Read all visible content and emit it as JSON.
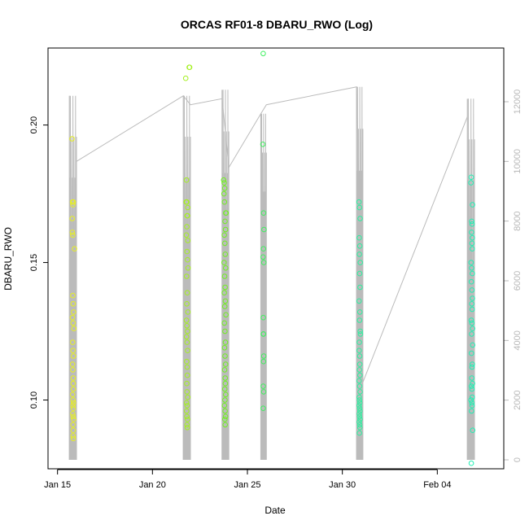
{
  "chart_data": {
    "type": "scatter",
    "title": "ORCAS RF01-8 DBARU_RWO (Log)",
    "xlabel": "Date",
    "ylabel": "DBARU_RWO",
    "x_axis": {
      "type": "date",
      "range": [
        "2016-01-14T12:00",
        "2016-02-07T12:00"
      ],
      "ticks": [
        {
          "date": "2016-01-15",
          "label": "Jan 15"
        },
        {
          "date": "2016-01-20",
          "label": "Jan 20"
        },
        {
          "date": "2016-01-25",
          "label": "Jan 25"
        },
        {
          "date": "2016-01-30",
          "label": "Jan 30"
        },
        {
          "date": "2016-02-04",
          "label": "Feb 04"
        }
      ]
    },
    "y_axis": {
      "range": [
        0.075,
        0.228
      ],
      "ticks": [
        {
          "value": 0.1,
          "label": "0.10"
        },
        {
          "value": 0.15,
          "label": "0.15"
        },
        {
          "value": 0.2,
          "label": "0.20"
        }
      ]
    },
    "y2_axis": {
      "color": "#b8b8b8",
      "range": [
        -300,
        13800
      ],
      "ticks": [
        {
          "value": 0,
          "label": "0"
        },
        {
          "value": 2000,
          "label": "2000"
        },
        {
          "value": 4000,
          "label": "4000"
        },
        {
          "value": 6000,
          "label": "6000"
        },
        {
          "value": 8000,
          "label": "8000"
        },
        {
          "value": 10000,
          "label": "10000"
        },
        {
          "value": 12000,
          "label": "12000"
        }
      ]
    },
    "grid": false,
    "legend": "none",
    "line_color": "#bbbbbb",
    "flights": [
      {
        "date": "2016-01-15",
        "color": "#e8f020",
        "start": "2016-01-15T15:00",
        "end": "2016-01-16T00:00",
        "max_alt": 12200,
        "points": [
          [
            "2016-01-15T18:20",
            0.195
          ],
          [
            "2016-01-15T19:00",
            0.172
          ],
          [
            "2016-01-15T19:30",
            0.171
          ],
          [
            "2016-01-15T20:00",
            0.172
          ],
          [
            "2016-01-15T18:30",
            0.166
          ],
          [
            "2016-01-15T18:45",
            0.161
          ],
          [
            "2016-01-15T19:15",
            0.16
          ],
          [
            "2016-01-15T21:30",
            0.155
          ],
          [
            "2016-01-15T19:20",
            0.138
          ],
          [
            "2016-01-15T19:50",
            0.135
          ],
          [
            "2016-01-15T20:20",
            0.132
          ],
          [
            "2016-01-15T18:50",
            0.13
          ],
          [
            "2016-01-15T19:40",
            0.128
          ],
          [
            "2016-01-15T20:40",
            0.126
          ],
          [
            "2016-01-15T19:10",
            0.121
          ],
          [
            "2016-01-15T19:35",
            0.118
          ],
          [
            "2016-01-15T20:10",
            0.116
          ],
          [
            "2016-01-15T19:05",
            0.113
          ],
          [
            "2016-01-15T19:25",
            0.111
          ],
          [
            "2016-01-15T19:55",
            0.108
          ],
          [
            "2016-01-15T19:45",
            0.106
          ],
          [
            "2016-01-15T20:05",
            0.104
          ],
          [
            "2016-01-15T19:12",
            0.102
          ],
          [
            "2016-01-15T19:38",
            0.1
          ],
          [
            "2016-01-15T20:15",
            0.099
          ],
          [
            "2016-01-15T19:28",
            0.098
          ],
          [
            "2016-01-15T19:58",
            0.097
          ],
          [
            "2016-01-15T19:18",
            0.095
          ],
          [
            "2016-01-15T19:48",
            0.094
          ],
          [
            "2016-01-15T20:25",
            0.093
          ],
          [
            "2016-01-15T19:32",
            0.091
          ],
          [
            "2016-01-15T19:52",
            0.089
          ],
          [
            "2016-01-15T19:42",
            0.087
          ],
          [
            "2016-01-15T20:02",
            0.086
          ]
        ]
      },
      {
        "date": "2016-01-21",
        "color": "#a4f020",
        "start": "2016-01-21T15:00",
        "end": "2016-01-22T00:00",
        "max_alt": 12200,
        "points": [
          [
            "2016-01-21T23:00",
            0.221
          ],
          [
            "2016-01-21T22:30",
            0.221
          ],
          [
            "2016-01-21T18:00",
            0.217
          ],
          [
            "2016-01-21T19:00",
            0.18
          ],
          [
            "2016-01-21T18:40",
            0.172
          ],
          [
            "2016-01-21T19:20",
            0.172
          ],
          [
            "2016-01-21T20:30",
            0.17
          ],
          [
            "2016-01-21T19:50",
            0.167
          ],
          [
            "2016-01-21T20:10",
            0.167
          ],
          [
            "2016-01-21T19:30",
            0.163
          ],
          [
            "2016-01-21T18:50",
            0.16
          ],
          [
            "2016-01-21T20:40",
            0.158
          ],
          [
            "2016-01-21T19:40",
            0.154
          ],
          [
            "2016-01-21T20:20",
            0.151
          ],
          [
            "2016-01-21T21:00",
            0.148
          ],
          [
            "2016-01-21T19:10",
            0.145
          ],
          [
            "2016-01-21T20:00",
            0.139
          ],
          [
            "2016-01-21T19:25",
            0.135
          ],
          [
            "2016-01-21T20:50",
            0.132
          ],
          [
            "2016-01-21T18:55",
            0.129
          ],
          [
            "2016-01-21T19:35",
            0.127
          ],
          [
            "2016-01-21T20:15",
            0.125
          ],
          [
            "2016-01-21T19:05",
            0.123
          ],
          [
            "2016-01-21T19:45",
            0.121
          ],
          [
            "2016-01-21T20:25",
            0.118
          ],
          [
            "2016-01-21T19:15",
            0.114
          ],
          [
            "2016-01-21T19:55",
            0.112
          ],
          [
            "2016-01-21T20:05",
            0.109
          ],
          [
            "2016-01-21T19:22",
            0.106
          ],
          [
            "2016-01-21T19:38",
            0.103
          ],
          [
            "2016-01-21T20:35",
            0.101
          ],
          [
            "2016-01-21T19:02",
            0.099
          ],
          [
            "2016-01-21T19:48",
            0.098
          ],
          [
            "2016-01-21T19:12",
            0.096
          ],
          [
            "2016-01-21T19:28",
            0.094
          ],
          [
            "2016-01-21T20:18",
            0.093
          ],
          [
            "2016-01-21T19:42",
            0.091
          ],
          [
            "2016-01-21T19:58",
            0.09
          ]
        ]
      },
      {
        "date": "2016-01-23",
        "color": "#70f020",
        "start": "2016-01-23T16:00",
        "end": "2016-01-24T00:30",
        "max_alt": 12400,
        "points": [
          [
            "2016-01-23T18:00",
            0.18
          ],
          [
            "2016-01-23T18:40",
            0.179
          ],
          [
            "2016-01-23T19:20",
            0.177
          ],
          [
            "2016-01-23T18:20",
            0.175
          ],
          [
            "2016-01-23T19:00",
            0.172
          ],
          [
            "2016-01-23T20:40",
            0.168
          ],
          [
            "2016-01-23T21:00",
            0.168
          ],
          [
            "2016-01-23T19:40",
            0.165
          ],
          [
            "2016-01-23T20:20",
            0.162
          ],
          [
            "2016-01-23T18:50",
            0.16
          ],
          [
            "2016-01-23T19:30",
            0.157
          ],
          [
            "2016-01-23T20:00",
            0.153
          ],
          [
            "2016-01-23T18:30",
            0.15
          ],
          [
            "2016-01-23T20:30",
            0.148
          ],
          [
            "2016-01-23T19:10",
            0.145
          ],
          [
            "2016-01-23T19:50",
            0.141
          ],
          [
            "2016-01-23T18:45",
            0.139
          ],
          [
            "2016-01-23T20:10",
            0.136
          ],
          [
            "2016-01-23T19:25",
            0.134
          ],
          [
            "2016-01-23T20:50",
            0.131
          ],
          [
            "2016-01-23T18:55",
            0.128
          ],
          [
            "2016-01-23T19:35",
            0.125
          ],
          [
            "2016-01-23T20:15",
            0.121
          ],
          [
            "2016-01-23T19:05",
            0.119
          ],
          [
            "2016-01-23T19:45",
            0.116
          ],
          [
            "2016-01-23T20:25",
            0.113
          ],
          [
            "2016-01-23T19:15",
            0.111
          ],
          [
            "2016-01-23T19:55",
            0.108
          ],
          [
            "2016-01-23T20:05",
            0.106
          ],
          [
            "2016-01-23T19:22",
            0.104
          ],
          [
            "2016-01-23T20:35",
            0.102
          ],
          [
            "2016-01-23T19:38",
            0.1
          ],
          [
            "2016-01-23T19:02",
            0.098
          ],
          [
            "2016-01-23T19:48",
            0.096
          ],
          [
            "2016-01-23T20:18",
            0.094
          ],
          [
            "2016-01-23T19:28",
            0.093
          ],
          [
            "2016-01-23T19:58",
            0.091
          ]
        ]
      },
      {
        "date": "2016-01-25",
        "color": "#40f060",
        "start": "2016-01-25T17:00",
        "end": "2016-01-26T00:00",
        "max_alt": 11600,
        "points": [
          [
            "2016-01-25T20:00",
            0.226
          ],
          [
            "2016-01-25T19:30",
            0.193
          ],
          [
            "2016-01-25T20:30",
            0.168
          ],
          [
            "2016-01-25T21:00",
            0.162
          ],
          [
            "2016-01-25T20:15",
            0.155
          ],
          [
            "2016-01-25T19:45",
            0.152
          ],
          [
            "2016-01-25T20:45",
            0.15
          ],
          [
            "2016-01-25T20:05",
            0.13
          ],
          [
            "2016-01-25T20:25",
            0.124
          ],
          [
            "2016-01-25T20:10",
            0.124
          ],
          [
            "2016-01-25T20:40",
            0.116
          ],
          [
            "2016-01-25T20:20",
            0.114
          ],
          [
            "2016-01-25T19:55",
            0.105
          ],
          [
            "2016-01-25T20:35",
            0.103
          ],
          [
            "2016-01-25T20:00",
            0.097
          ]
        ]
      },
      {
        "date": "2016-01-30",
        "color": "#2cf0a0",
        "start": "2016-01-30T18:00",
        "end": "2016-01-31T02:00",
        "max_alt": 12500,
        "points": [
          [
            "2016-01-30T21:00",
            0.172
          ],
          [
            "2016-01-30T21:40",
            0.17
          ],
          [
            "2016-01-30T22:30",
            0.166
          ],
          [
            "2016-01-30T21:20",
            0.159
          ],
          [
            "2016-01-30T22:00",
            0.156
          ],
          [
            "2016-01-30T21:30",
            0.153
          ],
          [
            "2016-01-30T22:40",
            0.15
          ],
          [
            "2016-01-30T21:50",
            0.146
          ],
          [
            "2016-01-30T22:20",
            0.141
          ],
          [
            "2016-01-30T21:10",
            0.136
          ],
          [
            "2016-01-30T22:10",
            0.132
          ],
          [
            "2016-01-30T21:45",
            0.129
          ],
          [
            "2016-01-30T22:35",
            0.125
          ],
          [
            "2016-01-30T22:50",
            0.124
          ],
          [
            "2016-01-30T21:25",
            0.121
          ],
          [
            "2016-01-30T21:15",
            0.118
          ],
          [
            "2016-01-30T21:55",
            0.116
          ],
          [
            "2016-01-30T22:05",
            0.113
          ],
          [
            "2016-01-30T21:35",
            0.111
          ],
          [
            "2016-01-30T22:15",
            0.109
          ],
          [
            "2016-01-30T21:05",
            0.107
          ],
          [
            "2016-01-30T21:48",
            0.105
          ],
          [
            "2016-01-30T22:25",
            0.103
          ],
          [
            "2016-01-30T21:22",
            0.101
          ],
          [
            "2016-01-30T21:38",
            0.1
          ],
          [
            "2016-01-30T22:02",
            0.099
          ],
          [
            "2016-01-30T21:12",
            0.098
          ],
          [
            "2016-01-30T21:52",
            0.097
          ],
          [
            "2016-01-30T22:12",
            0.096
          ],
          [
            "2016-01-30T21:28",
            0.095
          ],
          [
            "2016-01-30T21:42",
            0.094
          ],
          [
            "2016-01-30T22:22",
            0.093
          ],
          [
            "2016-01-30T21:18",
            0.092
          ],
          [
            "2016-01-30T21:58",
            0.091
          ],
          [
            "2016-01-30T22:08",
            0.09
          ],
          [
            "2016-01-30T21:32",
            0.088
          ]
        ]
      },
      {
        "date": "2016-02-05",
        "color": "#20f0b4",
        "start": "2016-02-05T14:00",
        "end": "2016-02-05T23:00",
        "max_alt": 12100,
        "points": [
          [
            "2016-02-05T19:00",
            0.181
          ],
          [
            "2016-02-05T18:30",
            0.179
          ],
          [
            "2016-02-05T20:30",
            0.171
          ],
          [
            "2016-02-05T19:30",
            0.165
          ],
          [
            "2016-02-05T20:00",
            0.164
          ],
          [
            "2016-02-05T19:15",
            0.161
          ],
          [
            "2016-02-05T20:15",
            0.159
          ],
          [
            "2016-02-05T19:45",
            0.157
          ],
          [
            "2016-02-05T20:10",
            0.155
          ],
          [
            "2016-02-05T18:45",
            0.15
          ],
          [
            "2016-02-05T19:20",
            0.148
          ],
          [
            "2016-02-05T20:20",
            0.146
          ],
          [
            "2016-02-05T19:05",
            0.143
          ],
          [
            "2016-02-05T19:50",
            0.14
          ],
          [
            "2016-02-05T20:25",
            0.137
          ],
          [
            "2016-02-05T19:35",
            0.135
          ],
          [
            "2016-02-05T20:05",
            0.133
          ],
          [
            "2016-02-05T18:55",
            0.129
          ],
          [
            "2016-02-05T19:40",
            0.128
          ],
          [
            "2016-02-05T20:35",
            0.126
          ],
          [
            "2016-02-05T19:25",
            0.124
          ],
          [
            "2016-02-05T20:40",
            0.12
          ],
          [
            "2016-02-05T19:10",
            0.117
          ],
          [
            "2016-02-05T20:18",
            0.113
          ],
          [
            "2016-02-05T19:55",
            0.112
          ],
          [
            "2016-02-05T19:32",
            0.108
          ],
          [
            "2016-02-05T20:28",
            0.106
          ],
          [
            "2016-02-05T19:08",
            0.105
          ],
          [
            "2016-02-05T19:48",
            0.104
          ],
          [
            "2016-02-05T20:12",
            0.101
          ],
          [
            "2016-02-05T18:40",
            0.1
          ],
          [
            "2016-02-05T19:38",
            0.099
          ],
          [
            "2016-02-05T20:02",
            0.098
          ],
          [
            "2016-02-05T19:18",
            0.096
          ],
          [
            "2016-02-05T20:45",
            0.089
          ],
          [
            "2016-02-05T19:00",
            0.077
          ]
        ]
      }
    ],
    "ferry_line": [
      [
        "2016-01-16T00:00",
        10000
      ],
      [
        "2016-01-21T15:00",
        12200
      ],
      [
        "2016-01-22T00:00",
        11900
      ],
      [
        "2016-01-23T16:00",
        12100
      ],
      [
        "2016-01-24T00:30",
        9800
      ],
      [
        "2016-01-25T17:00",
        11600
      ],
      [
        "2016-01-26T00:00",
        11900
      ],
      [
        "2016-01-30T18:00",
        12500
      ],
      [
        "2016-01-31T02:00",
        2600
      ],
      [
        "2016-02-05T14:00",
        11500
      ]
    ]
  }
}
